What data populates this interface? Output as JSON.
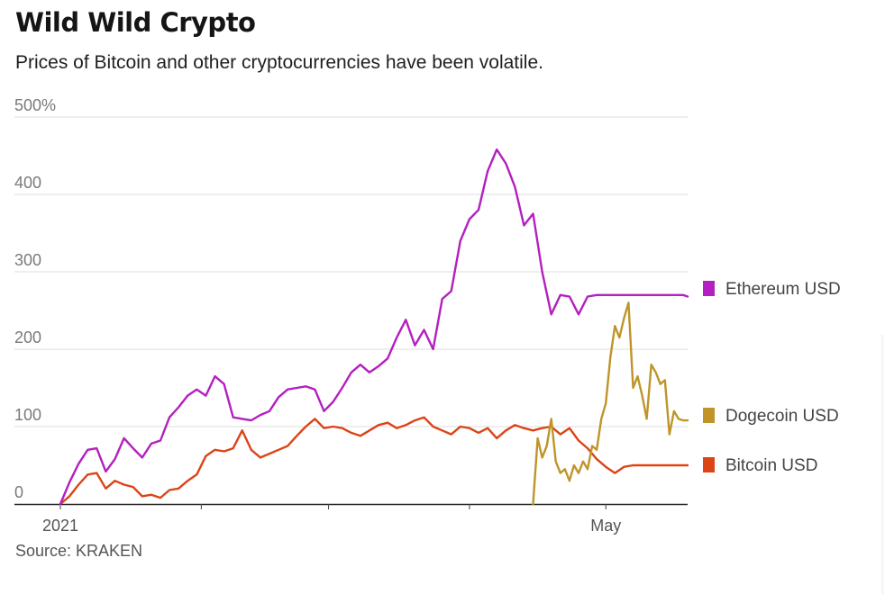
{
  "header": {
    "title": "Wild Wild Crypto",
    "subtitle": "Prices of Bitcoin and other cryptocurrencies have been volatile."
  },
  "footer": {
    "source": "Source: KRAKEN"
  },
  "chart_data": {
    "type": "line",
    "title": "Wild Wild Crypto",
    "subtitle": "Prices of Bitcoin and other cryptocurrencies have been volatile.",
    "xlabel": "",
    "ylabel": "",
    "ylim": [
      0,
      500
    ],
    "yticks": [
      0,
      100,
      200,
      300,
      400,
      500
    ],
    "ytick_labels": [
      "0",
      "100",
      "200",
      "300",
      "400",
      "500%"
    ],
    "x_unit": "day index from Jan 1, 2021",
    "xlim": [
      0,
      138
    ],
    "xtick_labels": [
      {
        "x": 0,
        "label": "2021"
      },
      {
        "x": 31,
        "label": ""
      },
      {
        "x": 59,
        "label": ""
      },
      {
        "x": 90,
        "label": ""
      },
      {
        "x": 120,
        "label": "May"
      }
    ],
    "grid": true,
    "legend_position": "right",
    "series": [
      {
        "name": "Ethereum USD",
        "color": "#b41fbf",
        "x": [
          0,
          2,
          4,
          6,
          8,
          10,
          12,
          14,
          16,
          18,
          20,
          22,
          24,
          26,
          28,
          30,
          32,
          34,
          36,
          38,
          40,
          42,
          44,
          46,
          48,
          50,
          52,
          54,
          56,
          58,
          60,
          62,
          64,
          66,
          68,
          70,
          72,
          74,
          76,
          78,
          80,
          82,
          84,
          86,
          88,
          90,
          92,
          94,
          96,
          98,
          100,
          102,
          104,
          106,
          108,
          110,
          112,
          114,
          116,
          118,
          120,
          122,
          124,
          126,
          128,
          130,
          131,
          132,
          133,
          134,
          136,
          137,
          138
        ],
        "values": [
          0,
          28,
          52,
          70,
          72,
          42,
          58,
          85,
          72,
          60,
          78,
          82,
          112,
          125,
          140,
          148,
          140,
          165,
          155,
          112,
          110,
          108,
          115,
          120,
          138,
          148,
          150,
          152,
          148,
          120,
          132,
          150,
          170,
          180,
          170,
          178,
          188,
          215,
          238,
          205,
          225,
          200,
          265,
          275,
          340,
          368,
          380,
          430,
          458,
          440,
          410,
          360,
          375,
          300,
          245,
          270,
          268,
          245,
          268,
          270,
          270,
          270,
          270,
          270,
          270,
          270,
          270,
          270,
          270,
          270,
          270,
          270,
          268
        ]
      },
      {
        "name": "Dogecoin USD",
        "color": "#bf952a",
        "x": [
          103,
          104,
          105,
          106,
          107,
          108,
          109,
          110,
          111,
          112,
          113,
          114,
          115,
          116,
          117,
          118,
          119,
          120,
          121,
          122,
          123,
          124,
          125,
          126,
          127,
          128,
          129,
          130,
          131,
          132,
          133,
          134,
          135,
          136,
          137,
          138
        ],
        "values": [
          0,
          85,
          60,
          75,
          110,
          55,
          40,
          45,
          30,
          50,
          40,
          55,
          45,
          75,
          70,
          110,
          130,
          190,
          230,
          215,
          240,
          260,
          150,
          165,
          140,
          110,
          180,
          170,
          155,
          160,
          90,
          120,
          110,
          108,
          108,
          108
        ],
        "x_override": [
          104,
          105,
          106,
          107,
          108,
          109,
          110,
          111,
          112,
          113,
          114,
          115,
          116,
          117,
          118,
          119,
          120,
          121,
          122,
          123,
          124,
          125,
          126,
          127,
          128,
          129,
          130,
          131,
          132,
          133,
          134,
          135,
          136,
          137,
          138,
          138
        ]
      },
      {
        "name": "Bitcoin USD",
        "color": "#dc4416",
        "x": [
          0,
          2,
          4,
          6,
          8,
          10,
          12,
          14,
          16,
          18,
          20,
          22,
          24,
          26,
          28,
          30,
          32,
          34,
          36,
          38,
          40,
          42,
          44,
          46,
          48,
          50,
          52,
          54,
          56,
          58,
          60,
          62,
          64,
          66,
          68,
          70,
          72,
          74,
          76,
          78,
          80,
          82,
          84,
          86,
          88,
          90,
          92,
          94,
          96,
          98,
          100,
          102,
          104,
          106,
          108,
          110,
          112,
          114,
          116,
          118,
          120,
          122,
          124,
          126,
          128,
          130,
          132,
          134,
          136,
          138
        ],
        "values": [
          0,
          10,
          25,
          38,
          40,
          20,
          30,
          25,
          22,
          10,
          12,
          8,
          18,
          20,
          30,
          38,
          62,
          70,
          68,
          72,
          95,
          70,
          60,
          65,
          70,
          75,
          88,
          100,
          110,
          98,
          100,
          98,
          92,
          88,
          95,
          102,
          105,
          98,
          102,
          108,
          112,
          100,
          95,
          90,
          100,
          98,
          92,
          98,
          85,
          95,
          102,
          98,
          95,
          98,
          100,
          90,
          98,
          82,
          72,
          58,
          48,
          40,
          48,
          50,
          50,
          50,
          50,
          50,
          50,
          50
        ]
      }
    ]
  }
}
